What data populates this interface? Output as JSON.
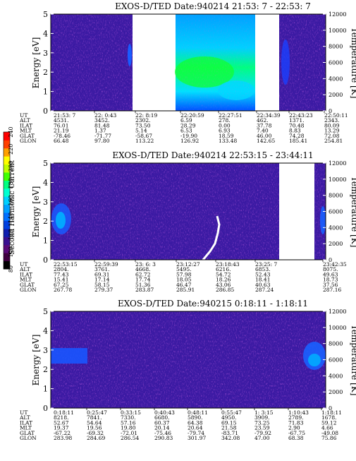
{
  "colorbar": {
    "title": "Second Harmonic Current",
    "ticks": [
      "80",
      "100",
      "120",
      "140",
      "160",
      "180",
      "200",
      "220",
      "240"
    ],
    "colors": [
      "#000000",
      "#400040",
      "#5a0a78",
      "#3a1090",
      "#1020b0",
      "#0040e0",
      "#0070ff",
      "#00a0ff",
      "#00d0ff",
      "#00ffd0",
      "#00ff80",
      "#40ff00",
      "#c0ff00",
      "#ffff00",
      "#ffa000",
      "#ff4000",
      "#ff0000"
    ]
  },
  "chart_data": [
    {
      "type": "heatmap",
      "title": "EXOS-D/TED   Date:940214  21:53: 7 - 22:53: 7",
      "ylabel": "Energy [eV]",
      "ylim": [
        0,
        5
      ],
      "yticks": [
        "0",
        "1",
        "2",
        "3",
        "4",
        "5"
      ],
      "y2label": "Temperature [K]",
      "y2lim": [
        0,
        12000
      ],
      "y2ticks": [
        "0",
        "2000",
        "4000",
        "6000",
        "8000",
        "10000",
        "12000"
      ],
      "table": {
        "labels": [
          "UT",
          "ALT",
          "ILAT",
          "MLT",
          "GLAT",
          "GLON"
        ],
        "columns": [
          [
            "21:53: 7",
            "4531.",
            "76.01",
            "21.19",
            "-78.46",
            "66.48"
          ],
          [
            "22: 0:43",
            "3452.",
            "81.48",
            "1.37",
            "-71.77",
            "97.80"
          ],
          [
            "22: 8:19",
            "2302.",
            "73.50",
            "5.14",
            "-58.67",
            "113.22"
          ],
          [
            "22:20:59",
            "6.59",
            "28.29",
            "6.53",
            "-19.90",
            "126.92"
          ],
          [
            "22:27:51",
            "278.",
            "0.00",
            "6.93",
            "18.59",
            "133.48"
          ],
          [
            "22:34:39",
            "462.",
            "37.78",
            "7.40",
            "46.00",
            "142.65"
          ],
          [
            "22:43:23",
            "1371.",
            "70.48",
            "8.83",
            "74.28",
            "185.41"
          ],
          [
            "22:50:11",
            "2343.",
            "80.09",
            "13.29",
            "72.08",
            "254.81"
          ]
        ]
      }
    },
    {
      "type": "heatmap",
      "title": "EXOS-D/TED   Date:940214   22:53:15 - 23:44:11",
      "ylabel": "Energy [eV]",
      "ylim": [
        0,
        5
      ],
      "yticks": [
        "0",
        "1",
        "2",
        "3",
        "4",
        "5"
      ],
      "y2label": "Temperature [K]",
      "y2lim": [
        0,
        12000
      ],
      "y2ticks": [
        "0",
        "2000",
        "4000",
        "6000",
        "8000",
        "10000",
        "12000"
      ],
      "table": {
        "labels": [
          "UT",
          "ALT",
          "ILAT",
          "MLT",
          "GLAT",
          "GLON"
        ],
        "columns": [
          [
            "22:53:15",
            "2804.",
            "77.43",
            "15.41",
            "67.25",
            "267.78"
          ],
          [
            "22:59:39",
            "3761.",
            "69.31",
            "17.14",
            "58.15",
            "279.37"
          ],
          [
            "23: 6: 3",
            "4668.",
            "62.72",
            "17.74",
            "51.36",
            "283.87"
          ],
          [
            "23:12:27",
            "5495.",
            "57.98",
            "18.05",
            "46.47",
            "285.91"
          ],
          [
            "23:18:43",
            "6216.",
            "54.72",
            "18.26",
            "43.06",
            "286.85"
          ],
          [
            "23:25: 7",
            "6853.",
            "52.43",
            "18.41",
            "40.63",
            "287.24"
          ],
          [
            "23:42:35",
            "8075.",
            "49.63",
            "18.73",
            "37.56",
            "287.16"
          ]
        ]
      }
    },
    {
      "type": "heatmap",
      "title": "EXOS-D/TED   Date:940215   0:18:11 - 1:18:11",
      "ylabel": "Energy [eV]",
      "ylim": [
        0,
        5
      ],
      "yticks": [
        "0",
        "1",
        "2",
        "3",
        "4",
        "5"
      ],
      "y2label": "Temperature [K]",
      "y2lim": [
        0,
        12000
      ],
      "y2ticks": [
        "0",
        "2000",
        "4000",
        "6000",
        "8000",
        "10000",
        "12000"
      ],
      "table": {
        "labels": [
          "UT",
          "ALT",
          "ILAT",
          "MLT",
          "GLAT",
          "GLON"
        ],
        "columns": [
          [
            "0:18:11",
            "8218.",
            "52.67",
            "19.37",
            "-67.22",
            "283.98"
          ],
          [
            "0:25:47",
            "7841.",
            "54.64",
            "19.56",
            "-69.32",
            "284.69"
          ],
          [
            "0:33:15",
            "7330.",
            "57.16",
            "19.80",
            "-72.01",
            "286.54"
          ],
          [
            "0:40:43",
            "6680.",
            "60.37",
            "20.14",
            "-75.46",
            "290.83"
          ],
          [
            "0:48:11",
            "5890.",
            "64.38",
            "20.64",
            "-79.74",
            "301.97"
          ],
          [
            "0:55:47",
            "4950.",
            "69.15",
            "21.58",
            "-83.71",
            "342.08"
          ],
          [
            "1: 3:15",
            "3909.",
            "73.25",
            "23.59",
            "-79.92",
            "47.00"
          ],
          [
            "1:10:43",
            "2789.",
            "71.83",
            "2.90",
            "-67.75",
            "68.38"
          ],
          [
            "1:18:11",
            "1678.",
            "59.12",
            "4.66",
            "-49.08",
            "75.86"
          ]
        ]
      }
    }
  ]
}
